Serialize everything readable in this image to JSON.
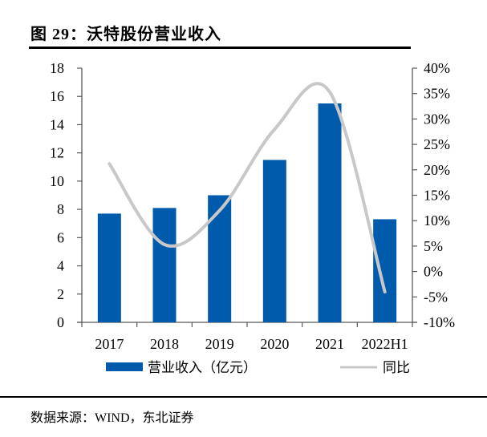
{
  "figure": {
    "title": "图 29：沃特股份营业收入",
    "source": "数据来源：WIND，东北证券"
  },
  "colors": {
    "bar": "#005BAC",
    "line": "#C8C8C8",
    "axis": "#595959"
  },
  "chart_data": {
    "type": "bar",
    "title": "沃特股份营业收入",
    "categories": [
      "2017",
      "2018",
      "2019",
      "2020",
      "2021",
      "2022H1"
    ],
    "series": [
      {
        "name": "营业收入（亿元）",
        "type": "bar",
        "axis": "left",
        "values": [
          7.7,
          8.1,
          9.0,
          11.5,
          15.5,
          7.3
        ]
      },
      {
        "name": "同比",
        "type": "line",
        "axis": "right",
        "smooth": true,
        "values": [
          21.2,
          5.3,
          12.0,
          28.0,
          35.3,
          -4.0
        ]
      }
    ],
    "left_axis": {
      "min": 0,
      "max": 18,
      "step": 2,
      "ticks": [
        "0",
        "2",
        "4",
        "6",
        "8",
        "10",
        "12",
        "14",
        "16",
        "18"
      ]
    },
    "right_axis": {
      "min": -10,
      "max": 40,
      "step": 5,
      "ticks": [
        "-10%",
        "-5%",
        "0%",
        "5%",
        "10%",
        "15%",
        "20%",
        "25%",
        "30%",
        "35%",
        "40%"
      ]
    },
    "xlabel": "",
    "ylabel": "",
    "grid": false,
    "legend": {
      "placement": "bottom",
      "entries": [
        "营业收入（亿元）",
        "同比"
      ]
    }
  }
}
